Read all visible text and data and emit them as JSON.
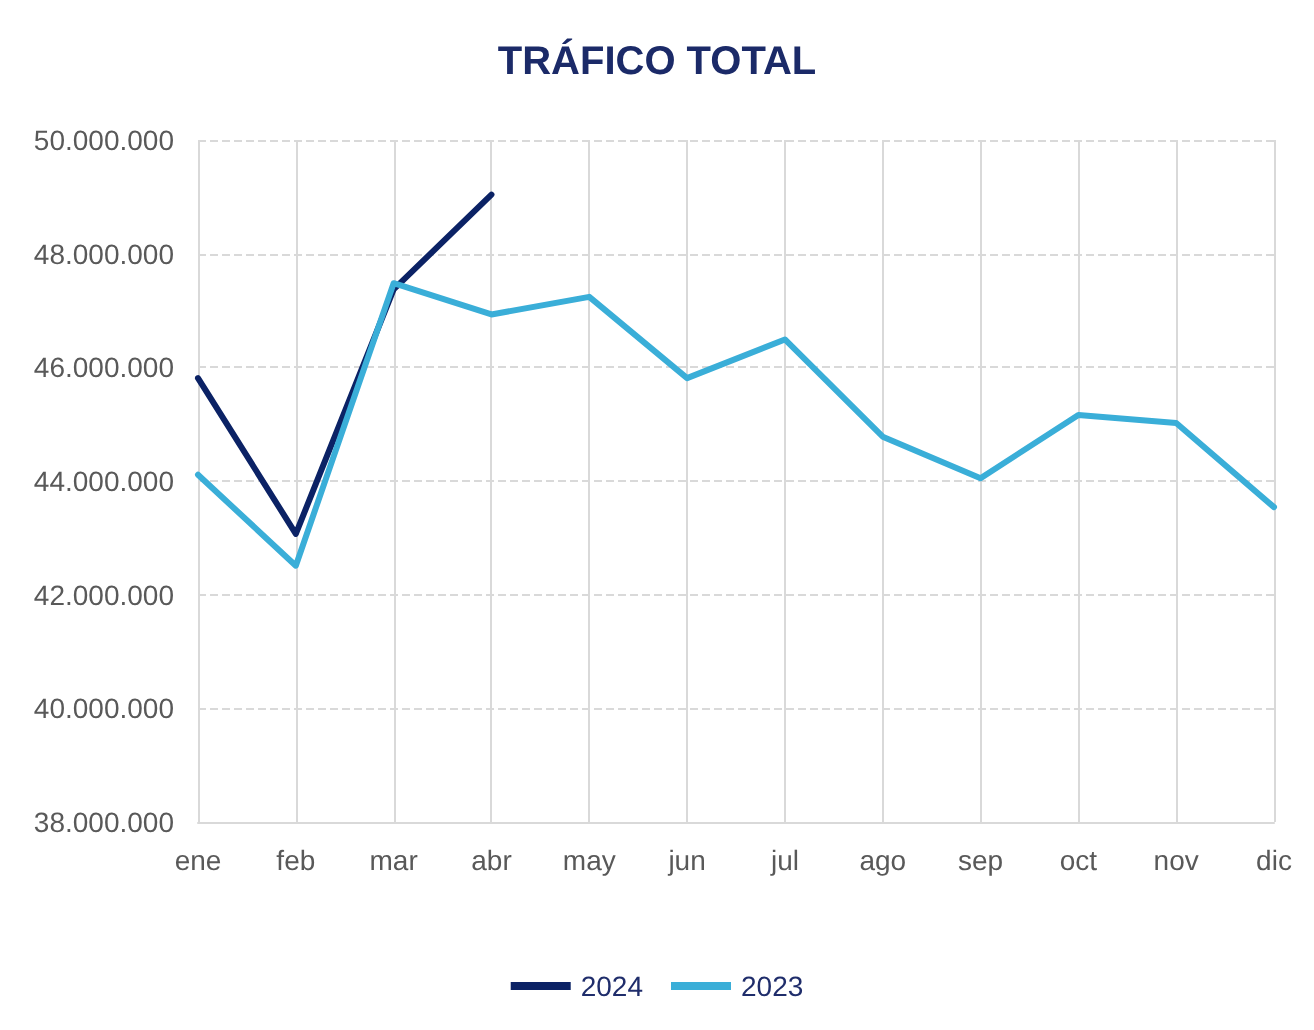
{
  "chart_data": {
    "type": "line",
    "title": "TRÁFICO TOTAL",
    "categories": [
      "ene",
      "feb",
      "mar",
      "abr",
      "may",
      "jun",
      "jul",
      "ago",
      "sep",
      "oct",
      "nov",
      "dic"
    ],
    "series": [
      {
        "name": "2024",
        "color": "#0b2265",
        "values": [
          45810000,
          43070000,
          47370000,
          49040000,
          null,
          null,
          null,
          null,
          null,
          null,
          null,
          null
        ]
      },
      {
        "name": "2023",
        "color": "#3aaed8",
        "values": [
          44110000,
          42510000,
          47480000,
          46930000,
          47240000,
          45810000,
          46490000,
          44780000,
          44050000,
          45160000,
          45020000,
          43540000
        ]
      }
    ],
    "ylim": [
      38000000,
      50000000
    ],
    "yticks": [
      {
        "value": 38000000,
        "label": "38.000.000"
      },
      {
        "value": 40000000,
        "label": "40.000.000"
      },
      {
        "value": 42000000,
        "label": "42.000.000"
      },
      {
        "value": 44000000,
        "label": "44.000.000"
      },
      {
        "value": 46000000,
        "label": "46.000.000"
      },
      {
        "value": 48000000,
        "label": "48.000.000"
      },
      {
        "value": 50000000,
        "label": "50.000.000"
      }
    ],
    "grid": true,
    "legend": "bottom",
    "marker": "none",
    "line_style": "solid"
  }
}
